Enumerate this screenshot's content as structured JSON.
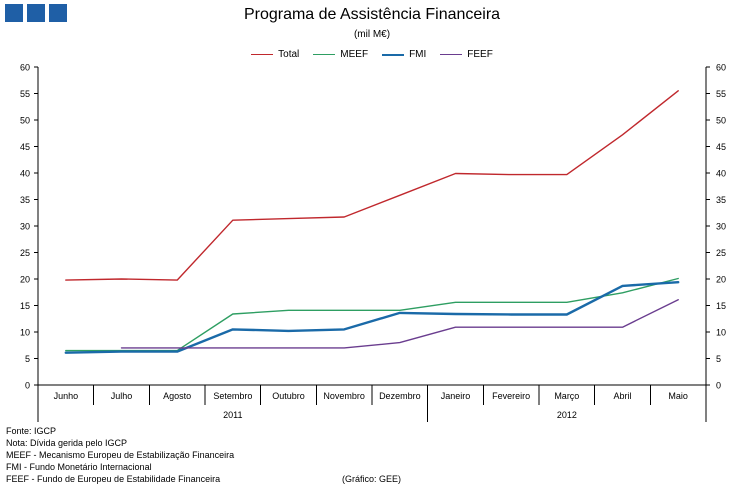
{
  "logo": {
    "name": "institution-logo",
    "color": "#1f5fa6"
  },
  "chart_data": {
    "type": "line",
    "title": "Programa de Assistência Financeira",
    "subtitle": "(mil M€)",
    "categories": [
      "Junho",
      "Julho",
      "Agosto",
      "Setembro",
      "Outubro",
      "Novembro",
      "Dezembro",
      "Janeiro",
      "Fevereiro",
      "Março",
      "Abril",
      "Maio"
    ],
    "year_groups": [
      {
        "label": "2011",
        "start": 0,
        "end": 6
      },
      {
        "label": "2012",
        "start": 7,
        "end": 11
      }
    ],
    "ylim": [
      0,
      60
    ],
    "yticks": [
      0,
      5,
      10,
      15,
      20,
      25,
      30,
      35,
      40,
      45,
      50,
      55,
      60
    ],
    "grid": false,
    "legend_position": "top-center",
    "series": [
      {
        "name": "Total",
        "color": "#c0282d",
        "width": 1.4,
        "values": [
          19.8,
          20.0,
          19.8,
          31.1,
          31.4,
          31.7,
          35.8,
          39.9,
          39.7,
          39.7,
          47.2,
          55.5
        ]
      },
      {
        "name": "MEEF",
        "color": "#2e9e62",
        "width": 1.4,
        "values": [
          6.5,
          6.5,
          6.5,
          13.4,
          14.1,
          14.1,
          14.1,
          15.6,
          15.6,
          15.6,
          17.4,
          20.1
        ]
      },
      {
        "name": "FMI",
        "color": "#1a6aa8",
        "width": 2.4,
        "values": [
          6.1,
          6.3,
          6.3,
          10.5,
          10.2,
          10.5,
          13.6,
          13.4,
          13.3,
          13.3,
          18.7,
          19.4
        ]
      },
      {
        "name": "FEEF",
        "color": "#6a3d8f",
        "width": 1.4,
        "values": [
          null,
          7.0,
          7.0,
          7.0,
          7.0,
          7.0,
          8.0,
          10.9,
          10.9,
          10.9,
          10.9,
          16.1
        ]
      }
    ]
  },
  "notes": [
    "Fonte: IGCP",
    "Nota: Dívida gerida pelo IGCP",
    "MEEF - Mecanismo Europeu de Estabilização Financeira",
    "FMI - Fundo Monetário Internacional",
    "FEEF - Fundo de Europeu de Estabilidade Financeira"
  ],
  "source": "(Gráfico: GEE)"
}
